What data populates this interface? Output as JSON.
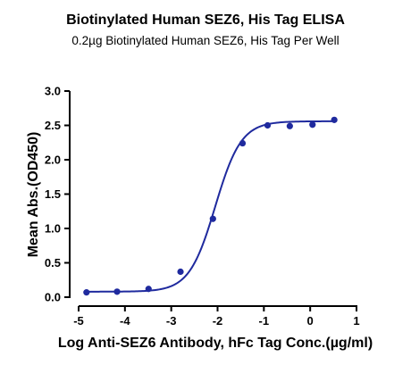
{
  "chart_data": {
    "type": "scatter",
    "title": "Biotinylated Human SEZ6, His Tag ELISA",
    "subtitle": "0.2µg Biotinylated Human SEZ6, His Tag Per Well",
    "xlabel": "Log Anti-SEZ6 Antibody, hFc Tag Conc.(µg/ml)",
    "ylabel": "Mean Abs.(OD450)",
    "xlim": [
      -5,
      1
    ],
    "ylim": [
      0,
      3.0
    ],
    "xticks": [
      -5,
      -4,
      -3,
      -2,
      -1,
      0,
      1
    ],
    "xtick_labels": [
      "-5",
      "-4",
      "-3",
      "-2",
      "-1",
      "0",
      "1"
    ],
    "yticks": [
      0,
      0.5,
      1.0,
      1.5,
      2.0,
      2.5,
      3.0
    ],
    "ytick_labels": [
      "0.0",
      "0.5",
      "1.0",
      "1.5",
      "2.0",
      "2.5",
      "3.0"
    ],
    "grid": false,
    "series": [
      {
        "x": [
          -4.83,
          -4.17,
          -3.49,
          -2.8,
          -2.1,
          -1.46,
          -0.92,
          -0.44,
          0.05,
          0.52
        ],
        "y": [
          0.07,
          0.08,
          0.12,
          0.37,
          1.14,
          2.24,
          2.5,
          2.49,
          2.51,
          2.58
        ],
        "color": "#1f2a9e"
      }
    ],
    "fit": {
      "type": "4PL",
      "bottom": 0.08,
      "top": 2.56,
      "logEC50": -2.05,
      "hill": 1.55,
      "color": "#1f2a9e"
    }
  }
}
